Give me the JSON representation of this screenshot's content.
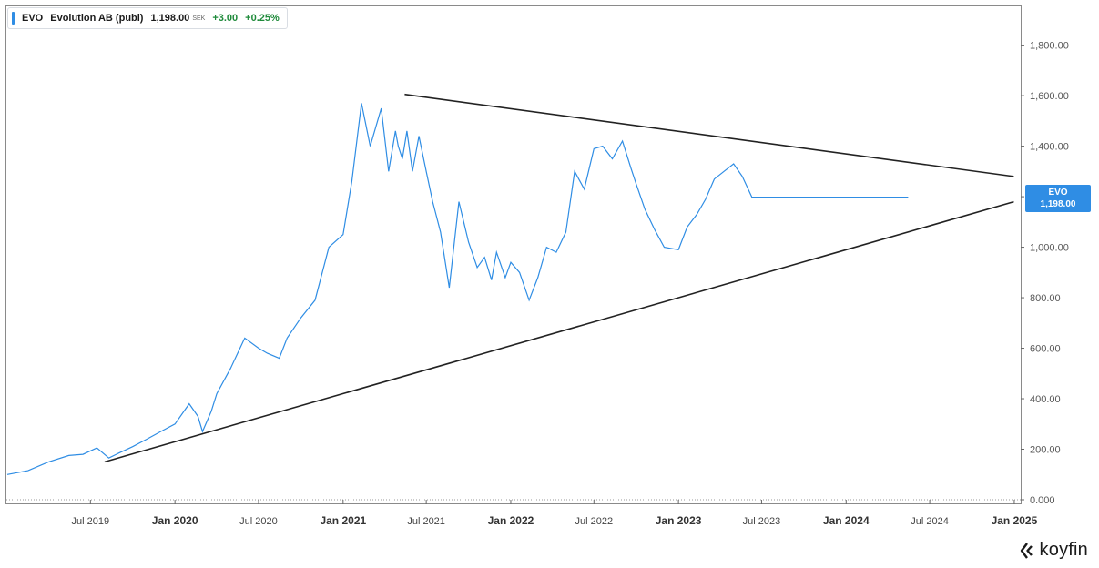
{
  "legend": {
    "ticker": "EVO",
    "name": "Evolution AB (publ)",
    "price": "1,198.00",
    "currency": "SEK",
    "change": "+3.00",
    "change_pct": "+0.25%"
  },
  "price_badge": {
    "ticker": "EVO",
    "value": "1,198.00"
  },
  "brand": "koyfin",
  "colors": {
    "line": "#2f8de4",
    "positive": "#1e8a3a",
    "trendline": "#222222",
    "badge": "#2f8de4"
  },
  "chart_data": {
    "type": "line",
    "title": "",
    "xlabel": "",
    "ylabel": "",
    "ylim": [
      0,
      1950
    ],
    "xlim": [
      "2019-01-01",
      "2025-01-15"
    ],
    "y_ticks": [
      0,
      200,
      400,
      600,
      800,
      1000,
      1200,
      1400,
      1600,
      1800
    ],
    "y_tick_labels": [
      "0.000",
      "200.00",
      "400.00",
      "600.00",
      "800.00",
      "1,000.00",
      "1,200.00",
      "1,400.00",
      "1,600.00",
      "1,800.00"
    ],
    "x_ticks": [
      {
        "label": "Jul 2019",
        "date": "2019-07-01",
        "major": false
      },
      {
        "label": "Jan 2020",
        "date": "2020-01-01",
        "major": true
      },
      {
        "label": "Jul 2020",
        "date": "2020-07-01",
        "major": false
      },
      {
        "label": "Jan 2021",
        "date": "2021-01-01",
        "major": true
      },
      {
        "label": "Jul 2021",
        "date": "2021-07-01",
        "major": false
      },
      {
        "label": "Jan 2022",
        "date": "2022-01-01",
        "major": true
      },
      {
        "label": "Jul 2022",
        "date": "2022-07-01",
        "major": false
      },
      {
        "label": "Jan 2023",
        "date": "2023-01-01",
        "major": true
      },
      {
        "label": "Jul 2023",
        "date": "2023-07-01",
        "major": false
      },
      {
        "label": "Jan 2024",
        "date": "2024-01-01",
        "major": true
      },
      {
        "label": "Jul 2024",
        "date": "2024-07-01",
        "major": false
      },
      {
        "label": "Jan 2025",
        "date": "2025-01-01",
        "major": true
      }
    ],
    "series": [
      {
        "name": "EVO",
        "x": [
          "2019-01-01",
          "2019-02-15",
          "2019-04-01",
          "2019-05-15",
          "2019-06-15",
          "2019-07-15",
          "2019-08-10",
          "2019-09-01",
          "2019-10-01",
          "2019-11-01",
          "2019-12-01",
          "2020-01-01",
          "2020-02-01",
          "2020-02-20",
          "2020-03-01",
          "2020-03-20",
          "2020-04-01",
          "2020-05-01",
          "2020-06-01",
          "2020-07-01",
          "2020-07-20",
          "2020-08-15",
          "2020-09-01",
          "2020-10-01",
          "2020-11-01",
          "2020-12-01",
          "2021-01-01",
          "2021-01-20",
          "2021-02-10",
          "2021-03-01",
          "2021-03-25",
          "2021-04-10",
          "2021-04-25",
          "2021-05-01",
          "2021-05-10",
          "2021-05-20",
          "2021-06-01",
          "2021-06-15",
          "2021-07-01",
          "2021-07-15",
          "2021-08-01",
          "2021-08-20",
          "2021-09-10",
          "2021-10-01",
          "2021-10-20",
          "2021-11-05",
          "2021-11-20",
          "2021-12-01",
          "2021-12-20",
          "2022-01-01",
          "2022-01-20",
          "2022-02-10",
          "2022-03-01",
          "2022-03-20",
          "2022-04-10",
          "2022-05-01",
          "2022-05-20",
          "2022-06-10",
          "2022-07-01",
          "2022-07-20",
          "2022-08-10",
          "2022-09-01",
          "2022-09-20",
          "2022-10-01",
          "2022-10-20",
          "2022-11-10",
          "2022-12-01",
          "2023-01-01",
          "2023-01-20",
          "2023-02-10",
          "2023-03-01",
          "2023-03-20",
          "2023-04-10",
          "2023-05-01",
          "2023-05-20",
          "2023-06-10",
          "2023-07-01",
          "2023-07-20",
          "2023-08-10",
          "2023-09-01",
          "2023-09-20",
          "2023-10-10",
          "2023-10-25",
          "2023-11-05",
          "2023-11-20",
          "2023-12-10",
          "2024-01-01",
          "2024-01-20",
          "2024-02-10",
          "2024-03-01",
          "2024-03-20",
          "2024-04-05",
          "2024-04-20",
          "2024-05-01",
          "2024-05-15"
        ],
        "values": [
          100,
          115,
          150,
          175,
          180,
          205,
          165,
          185,
          210,
          240,
          270,
          300,
          380,
          330,
          270,
          350,
          420,
          520,
          640,
          600,
          580,
          560,
          640,
          720,
          790,
          1000,
          1050,
          1260,
          1570,
          1400,
          1550,
          1300,
          1460,
          1400,
          1350,
          1460,
          1300,
          1440,
          1300,
          1180,
          1060,
          840,
          1180,
          1020,
          920,
          960,
          870,
          980,
          880,
          940,
          900,
          790,
          880,
          1000,
          980,
          1060,
          1300,
          1230,
          1390,
          1400,
          1350,
          1420,
          1310,
          1250,
          1150,
          1070,
          1000,
          990,
          1080,
          1130,
          1190,
          1270,
          1300,
          1330,
          1280,
          1198,
          1198,
          1198,
          1198,
          1198,
          1198,
          1198,
          1198,
          1198,
          1198,
          1198,
          1198,
          1198,
          1198,
          1198,
          1198,
          1198,
          1198,
          1198,
          1198
        ]
      }
    ],
    "trendlines": [
      {
        "name": "upper",
        "start": {
          "x": "2021-05-15",
          "y": 1605
        },
        "end": {
          "x": "2024-12-31",
          "y": 1280
        }
      },
      {
        "name": "lower",
        "start": {
          "x": "2019-08-01",
          "y": 150
        },
        "end": {
          "x": "2024-12-31",
          "y": 1180
        }
      }
    ],
    "grid": false,
    "legend_position": "top-left"
  }
}
